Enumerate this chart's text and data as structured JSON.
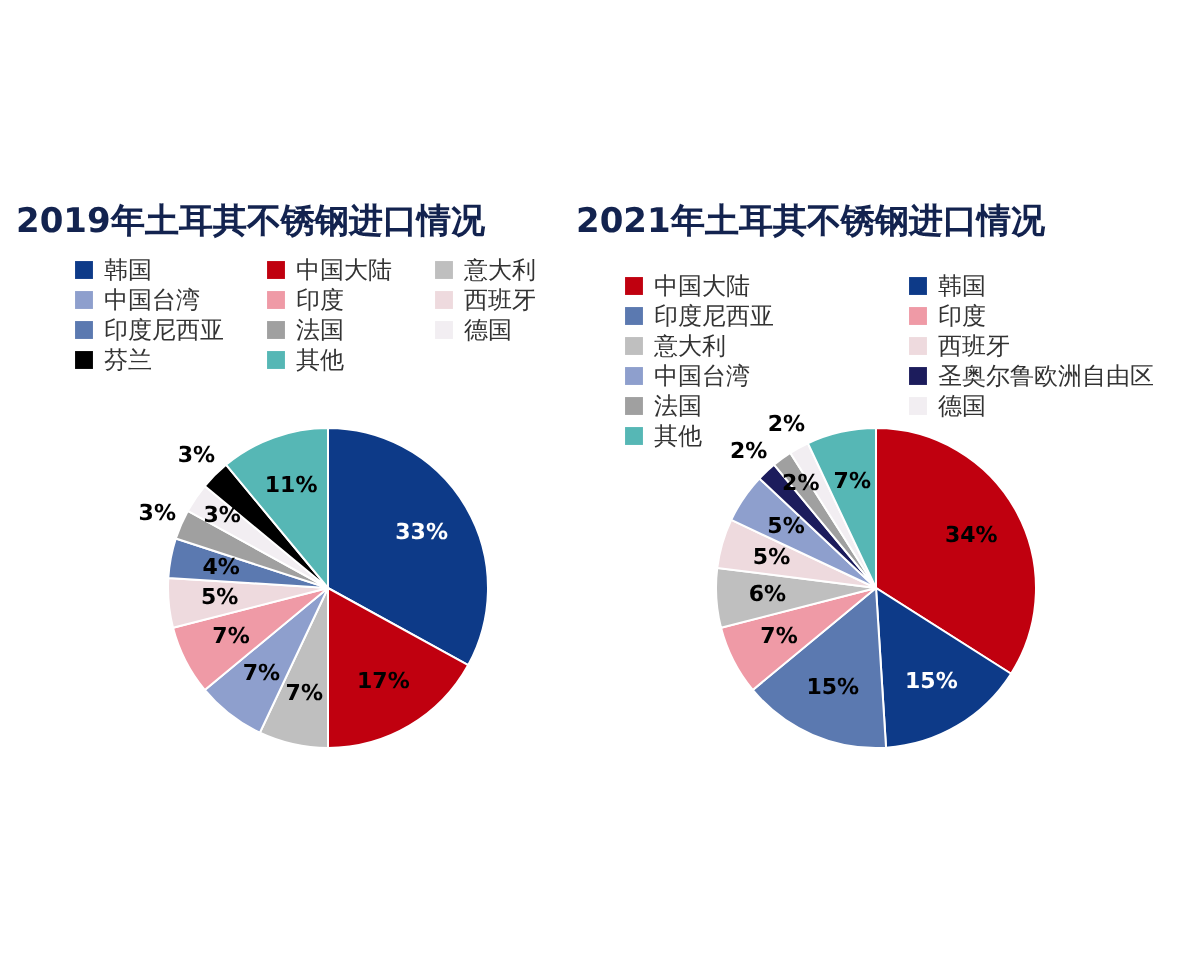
{
  "chart_data": [
    {
      "type": "pie",
      "title": "2019年土耳其不锈钢进口情况",
      "legend": "top",
      "categories": [
        "韩国",
        "中国大陆",
        "意大利",
        "中国台湾",
        "印度",
        "西班牙",
        "印度尼西亚",
        "法国",
        "德国",
        "芬兰",
        "其他"
      ],
      "values": [
        33,
        17,
        7,
        7,
        7,
        5,
        4,
        3,
        3,
        3,
        11
      ],
      "colors": [
        "#0d3a88",
        "#c0000f",
        "#bfbfbf",
        "#8e9fcd",
        "#ef9aa6",
        "#eedade",
        "#5b79b0",
        "#a0a0a0",
        "#f2eef2",
        "#000000",
        "#56b7b5"
      ],
      "value_labels": [
        "33%",
        "17%",
        "7%",
        "7%",
        "7%",
        "5%",
        "4%",
        "3%",
        "3%",
        "3%",
        "11%"
      ]
    },
    {
      "type": "pie",
      "title": "2021年土耳其不锈钢进口情况",
      "legend": "top",
      "categories": [
        "中国大陆",
        "韩国",
        "印度尼西亚",
        "印度",
        "意大利",
        "西班牙",
        "中国台湾",
        "圣奥尔鲁欧洲自由区",
        "法国",
        "德国",
        "其他"
      ],
      "values": [
        34,
        15,
        15,
        7,
        6,
        5,
        5,
        2,
        2,
        2,
        7
      ],
      "colors": [
        "#c0000f",
        "#0d3a88",
        "#5b79b0",
        "#ef9aa6",
        "#bfbfbf",
        "#eedade",
        "#8e9fcd",
        "#1c1c5c",
        "#a0a0a0",
        "#f2eef2",
        "#56b7b5"
      ],
      "value_labels": [
        "34%",
        "15%",
        "15%",
        "7%",
        "6%",
        "5%",
        "5%",
        "2%",
        "2%",
        "2%",
        "7%"
      ]
    }
  ]
}
